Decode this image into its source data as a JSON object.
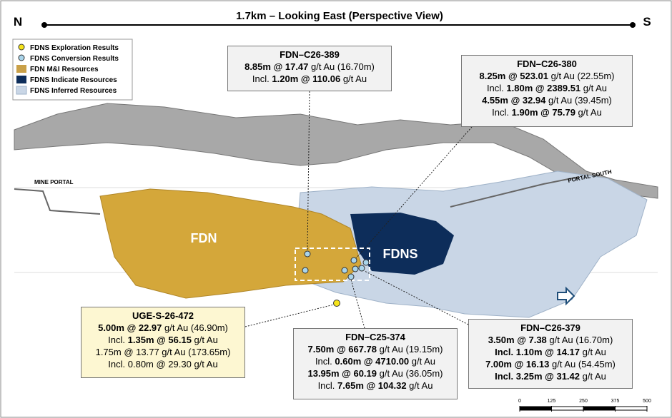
{
  "header": {
    "north": "N",
    "south": "S",
    "title": "1.7km – Looking East (Perspective View)"
  },
  "legend": [
    "FDNS Exploration Results",
    "FDNS Conversion Results",
    "FDN M&I Resources",
    "FDNS Indicate Resources",
    "FDNS Inferred Resources"
  ],
  "map_labels": {
    "mine_portal": "MINE PORTAL",
    "portal_south": "PORTAL SOUTH",
    "fdn": "FDN",
    "fdns": "FDNS"
  },
  "callouts": [
    {
      "title": "FDN–C26-389",
      "lines": [
        [
          {
            "text": "8.85m @ 17.47",
            "bold": true
          },
          {
            "text": " g/t Au (16.70m)"
          }
        ],
        [
          {
            "text": "Incl. "
          },
          {
            "text": "1.20m @ 110.06",
            "bold": true
          },
          {
            "text": " g/t Au"
          }
        ]
      ]
    },
    {
      "title": "FDN–C26-380",
      "lines": [
        [
          {
            "text": "8.25m @ 523.01",
            "bold": true
          },
          {
            "text": " g/t Au (22.55m)"
          }
        ],
        [
          {
            "text": "Incl. "
          },
          {
            "text": "1.80m @ 2389.51",
            "bold": true
          },
          {
            "text": " g/t Au"
          }
        ],
        [
          {
            "text": "4.55m @ 32.94",
            "bold": true
          },
          {
            "text": " g/t Au (39.45m)"
          }
        ],
        [
          {
            "text": "Incl. "
          },
          {
            "text": "1.90m @ 75.79",
            "bold": true
          },
          {
            "text": " g/t Au"
          }
        ]
      ]
    },
    {
      "title": "UGE-S-26-472",
      "lines": [
        [
          {
            "text": "5.00m @ 22.97",
            "bold": true
          },
          {
            "text": " g/t Au (46.90m)"
          }
        ],
        [
          {
            "text": "Incl. "
          },
          {
            "text": "1.35m @ 56.15",
            "bold": true
          },
          {
            "text": " g/t Au"
          }
        ],
        [
          {
            "text": "1.75m @ 13.77 g/t Au (173.65m)"
          }
        ],
        [
          {
            "text": "Incl. 0.80m @ 29.30 g/t Au"
          }
        ]
      ]
    },
    {
      "title": "FDN–C25-374",
      "lines": [
        [
          {
            "text": "7.50m @ 667.78",
            "bold": true
          },
          {
            "text": " g/t Au (19.15m)"
          }
        ],
        [
          {
            "text": "Incl. "
          },
          {
            "text": "0.60m @ 4710.00",
            "bold": true
          },
          {
            "text": " g/t Au"
          }
        ],
        [
          {
            "text": "13.95m @ 60.19",
            "bold": true
          },
          {
            "text": " g/t Au (36.05m)"
          }
        ],
        [
          {
            "text": "Incl. "
          },
          {
            "text": "7.65m @ 104.32",
            "bold": true
          },
          {
            "text": " g/t Au"
          }
        ]
      ]
    },
    {
      "title": "FDN–C26-379",
      "lines": [
        [
          {
            "text": "3.50m @ 7.38",
            "bold": true
          },
          {
            "text": " g/t Au (16.70m)"
          }
        ],
        [
          {
            "text": "Incl. 1.10m @ 14.17",
            "bold": true
          },
          {
            "text": " g/t Au"
          }
        ],
        [
          {
            "text": "7.00m @ 16.13",
            "bold": true
          },
          {
            "text": " g/t Au (54.45m)"
          }
        ],
        [
          {
            "text": "Incl. 3.25m @ 31.42",
            "bold": true
          },
          {
            "text": " g/t Au"
          }
        ]
      ]
    }
  ],
  "scale_bar": [
    0,
    125,
    250,
    375,
    500
  ]
}
